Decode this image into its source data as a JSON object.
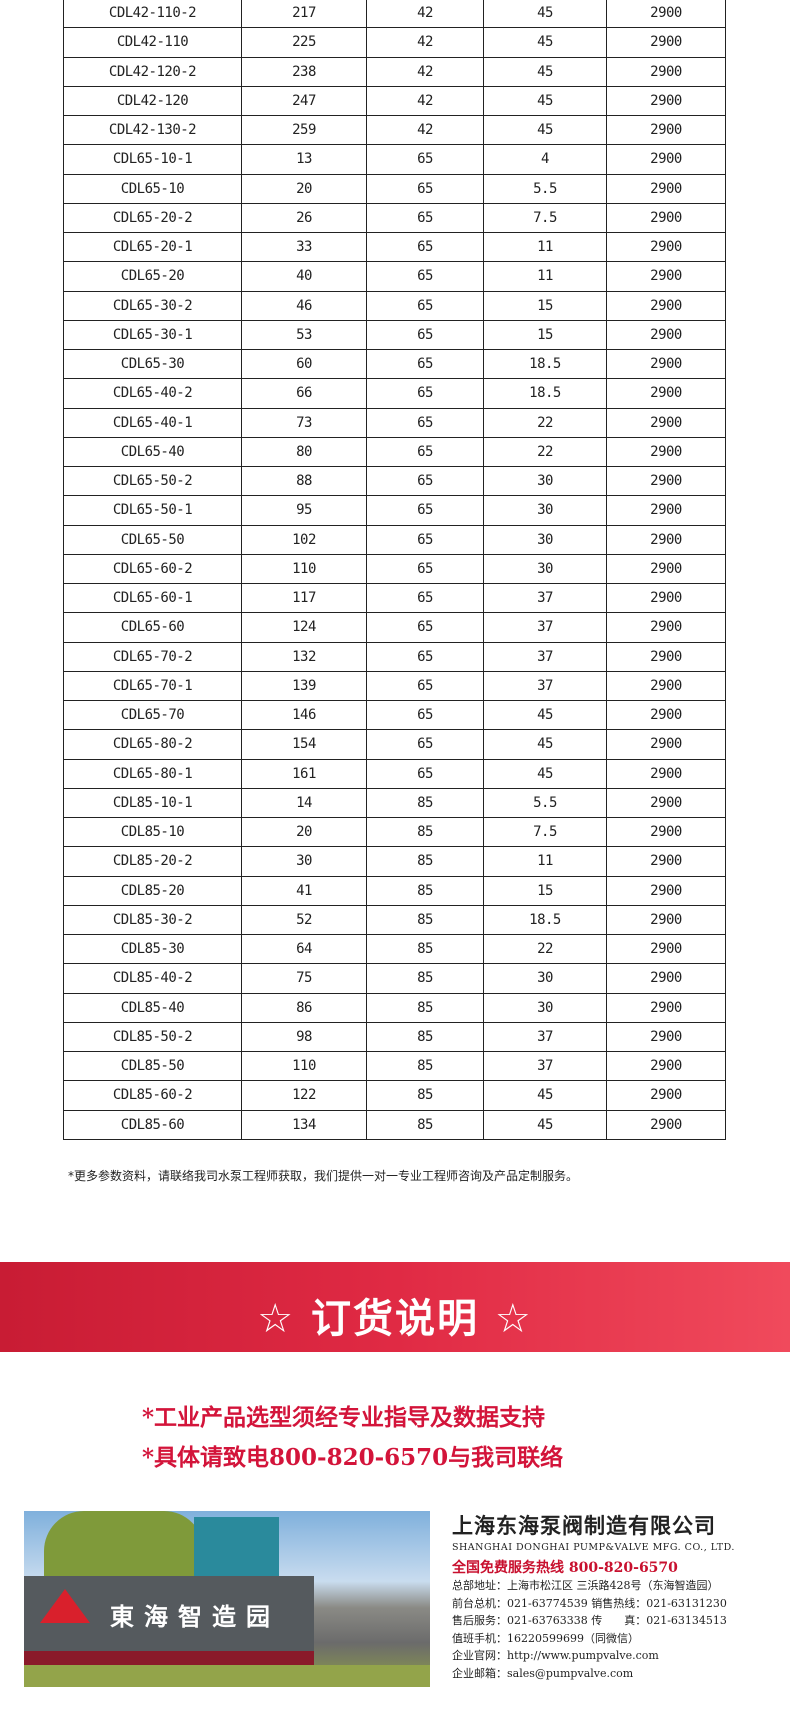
{
  "table": {
    "rows": [
      [
        "CDL42-110-2",
        "217",
        "42",
        "45",
        "2900"
      ],
      [
        "CDL42-110",
        "225",
        "42",
        "45",
        "2900"
      ],
      [
        "CDL42-120-2",
        "238",
        "42",
        "45",
        "2900"
      ],
      [
        "CDL42-120",
        "247",
        "42",
        "45",
        "2900"
      ],
      [
        "CDL42-130-2",
        "259",
        "42",
        "45",
        "2900"
      ],
      [
        "CDL65-10-1",
        "13",
        "65",
        "4",
        "2900"
      ],
      [
        "CDL65-10",
        "20",
        "65",
        "5.5",
        "2900"
      ],
      [
        "CDL65-20-2",
        "26",
        "65",
        "7.5",
        "2900"
      ],
      [
        "CDL65-20-1",
        "33",
        "65",
        "11",
        "2900"
      ],
      [
        "CDL65-20",
        "40",
        "65",
        "11",
        "2900"
      ],
      [
        "CDL65-30-2",
        "46",
        "65",
        "15",
        "2900"
      ],
      [
        "CDL65-30-1",
        "53",
        "65",
        "15",
        "2900"
      ],
      [
        "CDL65-30",
        "60",
        "65",
        "18.5",
        "2900"
      ],
      [
        "CDL65-40-2",
        "66",
        "65",
        "18.5",
        "2900"
      ],
      [
        "CDL65-40-1",
        "73",
        "65",
        "22",
        "2900"
      ],
      [
        "CDL65-40",
        "80",
        "65",
        "22",
        "2900"
      ],
      [
        "CDL65-50-2",
        "88",
        "65",
        "30",
        "2900"
      ],
      [
        "CDL65-50-1",
        "95",
        "65",
        "30",
        "2900"
      ],
      [
        "CDL65-50",
        "102",
        "65",
        "30",
        "2900"
      ],
      [
        "CDL65-60-2",
        "110",
        "65",
        "30",
        "2900"
      ],
      [
        "CDL65-60-1",
        "117",
        "65",
        "37",
        "2900"
      ],
      [
        "CDL65-60",
        "124",
        "65",
        "37",
        "2900"
      ],
      [
        "CDL65-70-2",
        "132",
        "65",
        "37",
        "2900"
      ],
      [
        "CDL65-70-1",
        "139",
        "65",
        "37",
        "2900"
      ],
      [
        "CDL65-70",
        "146",
        "65",
        "45",
        "2900"
      ],
      [
        "CDL65-80-2",
        "154",
        "65",
        "45",
        "2900"
      ],
      [
        "CDL65-80-1",
        "161",
        "65",
        "45",
        "2900"
      ],
      [
        "CDL85-10-1",
        "14",
        "85",
        "5.5",
        "2900"
      ],
      [
        "CDL85-10",
        "20",
        "85",
        "7.5",
        "2900"
      ],
      [
        "CDL85-20-2",
        "30",
        "85",
        "11",
        "2900"
      ],
      [
        "CDL85-20",
        "41",
        "85",
        "15",
        "2900"
      ],
      [
        "CDL85-30-2",
        "52",
        "85",
        "18.5",
        "2900"
      ],
      [
        "CDL85-30",
        "64",
        "85",
        "22",
        "2900"
      ],
      [
        "CDL85-40-2",
        "75",
        "85",
        "30",
        "2900"
      ],
      [
        "CDL85-40",
        "86",
        "85",
        "30",
        "2900"
      ],
      [
        "CDL85-50-2",
        "98",
        "85",
        "37",
        "2900"
      ],
      [
        "CDL85-50",
        "110",
        "85",
        "37",
        "2900"
      ],
      [
        "CDL85-60-2",
        "122",
        "85",
        "45",
        "2900"
      ],
      [
        "CDL85-60",
        "134",
        "85",
        "45",
        "2900"
      ]
    ]
  },
  "note": "*更多参数资料，请联络我司水泵工程师获取，我们提供一对一专业工程师咨询及产品定制服务。",
  "banner": {
    "title": "☆ 订货说明 ☆",
    "color": "#d9203a"
  },
  "order": {
    "line1": "*工业产品选型须经专业指导及数据支持",
    "line2": "*具体请致电800-820-6570与我司联络"
  },
  "photo": {
    "sign": "東海智造园"
  },
  "company": {
    "name": "上海东海泵阀制造有限公司",
    "name_en": "SHANGHAI DONGHAI PUMP&VALVE MFG. CO., LTD.",
    "hotline": "全国免费服务热线  800-820-6570",
    "lines": [
      "总部地址：上海市松江区 三浜路428号（东海智造园）",
      "前台总机：021-63774539   销售热线：021-63131230",
      "售后服务：021-63763338   传　　真：021-63134513",
      "值班手机：16220599699（同微信）",
      "企业官网：http://www.pumpvalve.com",
      "企业邮箱：sales@pumpvalve.com"
    ]
  }
}
